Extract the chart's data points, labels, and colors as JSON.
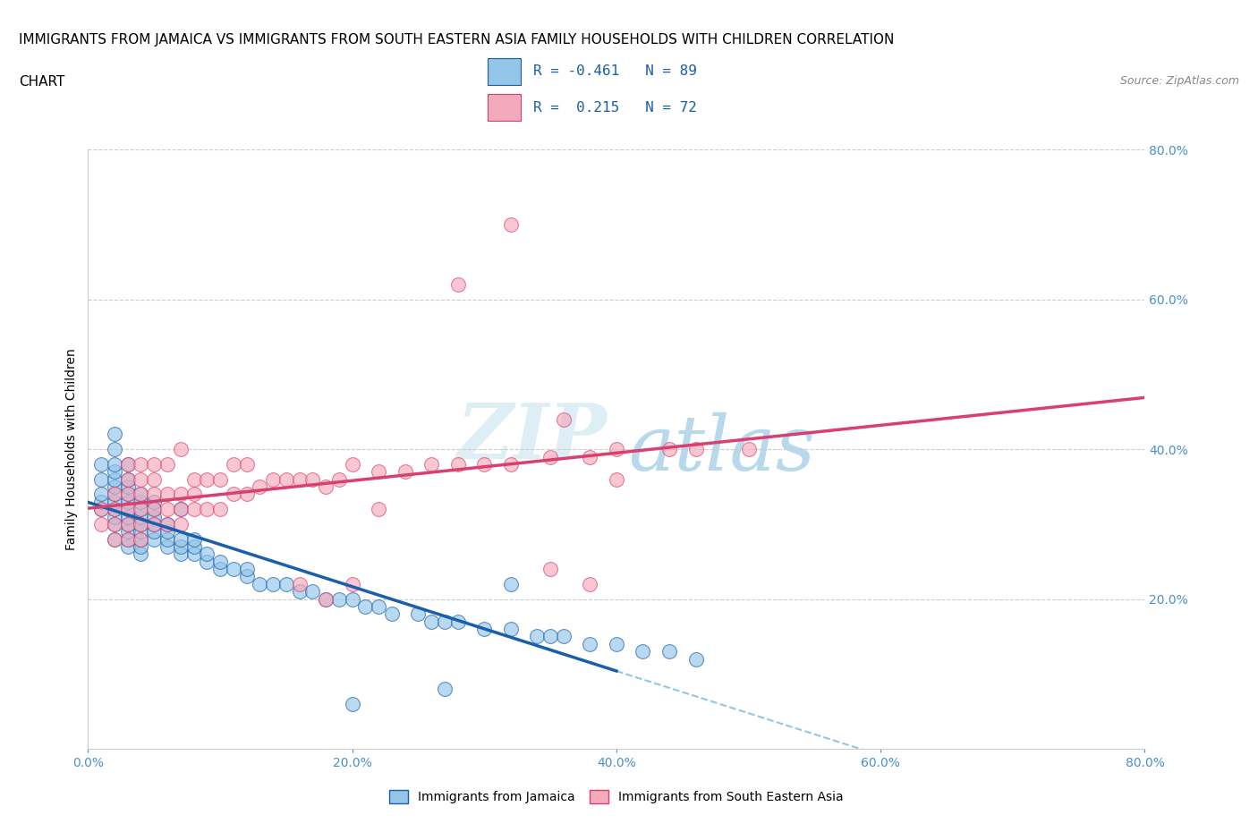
{
  "title_line1": "IMMIGRANTS FROM JAMAICA VS IMMIGRANTS FROM SOUTH EASTERN ASIA FAMILY HOUSEHOLDS WITH CHILDREN CORRELATION",
  "title_line2": "CHART",
  "source": "Source: ZipAtlas.com",
  "ylabel": "Family Households with Children",
  "xlim": [
    0.0,
    0.8
  ],
  "ylim": [
    0.0,
    0.8
  ],
  "xticks": [
    0.0,
    0.2,
    0.4,
    0.6,
    0.8
  ],
  "yticks": [
    0.2,
    0.4,
    0.6,
    0.8
  ],
  "xticklabels": [
    "0.0%",
    "20.0%",
    "40.0%",
    "60.0%",
    "80.0%"
  ],
  "yticklabels": [
    "20.0%",
    "40.0%",
    "60.0%",
    "80.0%"
  ],
  "legend_jamaica": "Immigrants from Jamaica",
  "legend_sea": "Immigrants from South Eastern Asia",
  "R_jamaica": -0.461,
  "N_jamaica": 89,
  "R_sea": 0.215,
  "N_sea": 72,
  "color_jamaica": "#92C5E8",
  "color_sea": "#F5AABB",
  "line_color_jamaica": "#1A5FAB",
  "line_color_sea": "#D94070",
  "background_color": "#FFFFFF",
  "watermark_zip": "ZIP",
  "watermark_atlas": "atlas",
  "watermark_color_zip": "#DDEEF5",
  "watermark_color_atlas": "#B8D8EC",
  "grid_color": "#CCCCCC",
  "tick_color": "#4A90C8",
  "title_fontsize": 11,
  "axis_label_fontsize": 10,
  "tick_fontsize": 10,
  "jamaica_x": [
    0.01,
    0.01,
    0.01,
    0.01,
    0.01,
    0.02,
    0.02,
    0.02,
    0.02,
    0.02,
    0.02,
    0.02,
    0.02,
    0.02,
    0.02,
    0.02,
    0.02,
    0.03,
    0.03,
    0.03,
    0.03,
    0.03,
    0.03,
    0.03,
    0.03,
    0.03,
    0.03,
    0.03,
    0.04,
    0.04,
    0.04,
    0.04,
    0.04,
    0.04,
    0.04,
    0.04,
    0.04,
    0.05,
    0.05,
    0.05,
    0.05,
    0.05,
    0.05,
    0.06,
    0.06,
    0.06,
    0.06,
    0.07,
    0.07,
    0.07,
    0.07,
    0.08,
    0.08,
    0.08,
    0.09,
    0.09,
    0.1,
    0.1,
    0.11,
    0.12,
    0.12,
    0.13,
    0.14,
    0.15,
    0.16,
    0.17,
    0.18,
    0.19,
    0.2,
    0.21,
    0.22,
    0.23,
    0.25,
    0.26,
    0.27,
    0.28,
    0.3,
    0.32,
    0.34,
    0.36,
    0.38,
    0.4,
    0.42,
    0.44,
    0.46,
    0.32,
    0.35,
    0.27,
    0.2
  ],
  "jamaica_y": [
    0.32,
    0.33,
    0.34,
    0.36,
    0.38,
    0.28,
    0.3,
    0.31,
    0.32,
    0.33,
    0.34,
    0.35,
    0.36,
    0.37,
    0.38,
    0.4,
    0.42,
    0.27,
    0.28,
    0.29,
    0.3,
    0.31,
    0.32,
    0.33,
    0.34,
    0.35,
    0.36,
    0.38,
    0.26,
    0.27,
    0.28,
    0.29,
    0.3,
    0.31,
    0.32,
    0.33,
    0.34,
    0.28,
    0.29,
    0.3,
    0.31,
    0.32,
    0.33,
    0.27,
    0.28,
    0.29,
    0.3,
    0.26,
    0.27,
    0.28,
    0.32,
    0.26,
    0.27,
    0.28,
    0.25,
    0.26,
    0.24,
    0.25,
    0.24,
    0.23,
    0.24,
    0.22,
    0.22,
    0.22,
    0.21,
    0.21,
    0.2,
    0.2,
    0.2,
    0.19,
    0.19,
    0.18,
    0.18,
    0.17,
    0.17,
    0.17,
    0.16,
    0.16,
    0.15,
    0.15,
    0.14,
    0.14,
    0.13,
    0.13,
    0.12,
    0.22,
    0.15,
    0.08,
    0.06
  ],
  "sea_x": [
    0.01,
    0.01,
    0.02,
    0.02,
    0.02,
    0.02,
    0.03,
    0.03,
    0.03,
    0.03,
    0.03,
    0.03,
    0.04,
    0.04,
    0.04,
    0.04,
    0.04,
    0.04,
    0.05,
    0.05,
    0.05,
    0.05,
    0.05,
    0.06,
    0.06,
    0.06,
    0.06,
    0.07,
    0.07,
    0.07,
    0.07,
    0.08,
    0.08,
    0.08,
    0.09,
    0.09,
    0.1,
    0.1,
    0.11,
    0.11,
    0.12,
    0.12,
    0.13,
    0.14,
    0.15,
    0.16,
    0.17,
    0.18,
    0.19,
    0.2,
    0.22,
    0.24,
    0.26,
    0.28,
    0.3,
    0.32,
    0.35,
    0.38,
    0.4,
    0.44,
    0.46,
    0.5,
    0.28,
    0.32,
    0.36,
    0.4,
    0.22,
    0.18,
    0.2,
    0.16,
    0.38,
    0.35
  ],
  "sea_y": [
    0.3,
    0.32,
    0.28,
    0.3,
    0.32,
    0.34,
    0.28,
    0.3,
    0.32,
    0.34,
    0.36,
    0.38,
    0.28,
    0.3,
    0.32,
    0.34,
    0.36,
    0.38,
    0.3,
    0.32,
    0.34,
    0.36,
    0.38,
    0.3,
    0.32,
    0.34,
    0.38,
    0.3,
    0.32,
    0.34,
    0.4,
    0.32,
    0.34,
    0.36,
    0.32,
    0.36,
    0.32,
    0.36,
    0.34,
    0.38,
    0.34,
    0.38,
    0.35,
    0.36,
    0.36,
    0.36,
    0.36,
    0.35,
    0.36,
    0.38,
    0.37,
    0.37,
    0.38,
    0.38,
    0.38,
    0.38,
    0.39,
    0.39,
    0.4,
    0.4,
    0.4,
    0.4,
    0.62,
    0.7,
    0.44,
    0.36,
    0.32,
    0.2,
    0.22,
    0.22,
    0.22,
    0.24
  ]
}
